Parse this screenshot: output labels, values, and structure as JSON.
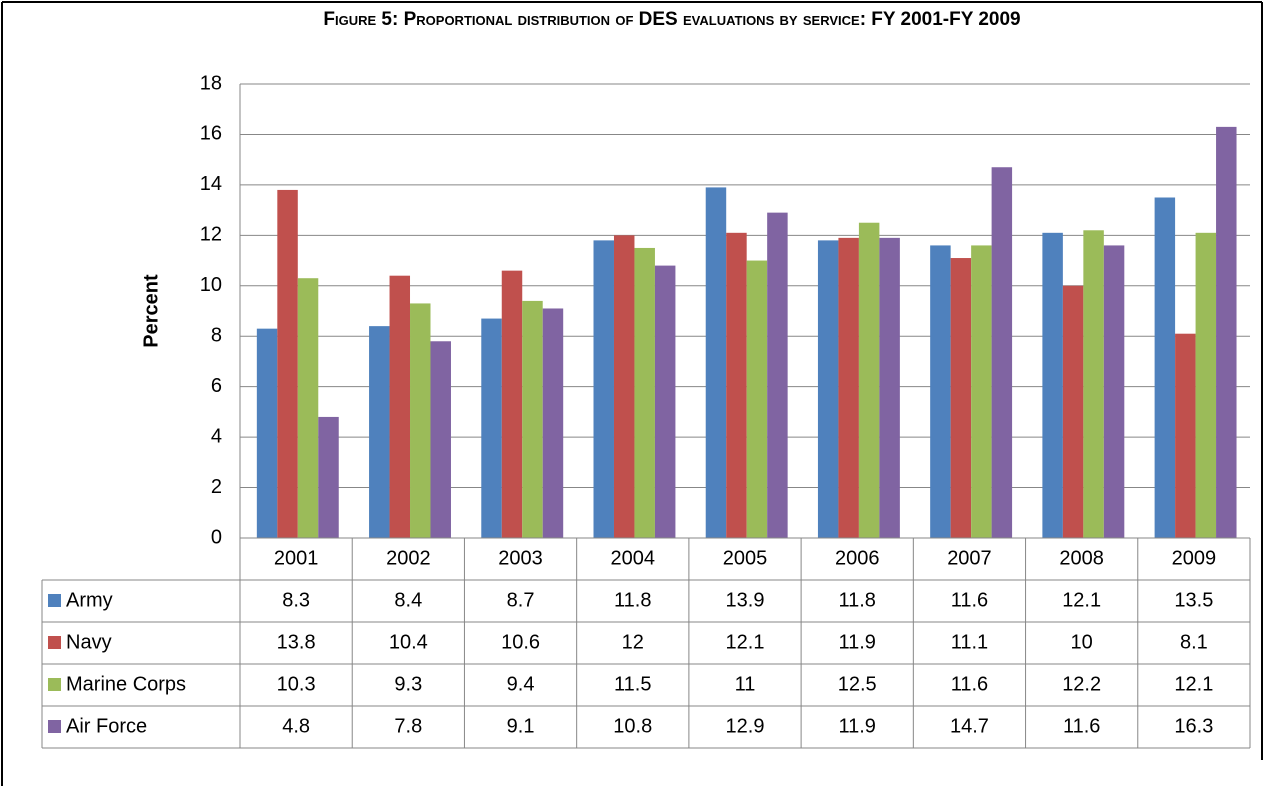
{
  "chart_data": {
    "type": "bar",
    "title": "Figure 5: Proportional distribution of DES evaluations by service: FY 2001-FY 2009",
    "y_label": "Percent",
    "categories": [
      "2001",
      "2002",
      "2003",
      "2004",
      "2005",
      "2006",
      "2007",
      "2008",
      "2009"
    ],
    "series": [
      {
        "name": "Army",
        "color": "#4f81bd",
        "values": [
          8.3,
          8.4,
          8.7,
          11.8,
          13.9,
          11.8,
          11.6,
          12.1,
          13.5
        ]
      },
      {
        "name": "Navy",
        "color": "#c0504d",
        "values": [
          13.8,
          10.4,
          10.6,
          12,
          12.1,
          11.9,
          11.1,
          10,
          8.1
        ]
      },
      {
        "name": "Marine Corps",
        "color": "#9bbb59",
        "values": [
          10.3,
          9.3,
          9.4,
          11.5,
          11,
          12.5,
          11.6,
          12.2,
          12.1
        ]
      },
      {
        "name": "Air Force",
        "color": "#8064a2",
        "values": [
          4.8,
          7.8,
          9.1,
          10.8,
          12.9,
          11.9,
          14.7,
          11.6,
          16.3
        ]
      }
    ],
    "ylim": [
      0,
      18
    ],
    "yticks": [
      0,
      2,
      4,
      6,
      8,
      10,
      12,
      14,
      16,
      18
    ],
    "grid": true
  }
}
